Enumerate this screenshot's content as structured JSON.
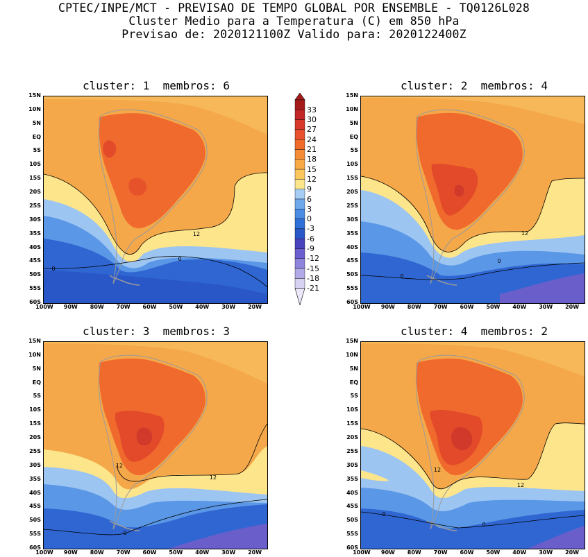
{
  "header": {
    "line1": "CPTEC/INPE/MCT - PREVISAO DE TEMPO GLOBAL POR ENSEMBLE - TQ0126L028",
    "line2": "Cluster Medio para a Temperatura (C) em 850 hPa",
    "line3": "Previsao de: 2020121100Z   Valido para: 2020122400Z"
  },
  "panels": [
    {
      "title": "cluster: 1  membros: 6",
      "contour_labels": [
        "12",
        "0",
        "0"
      ]
    },
    {
      "title": "cluster: 2  membros: 4",
      "contour_labels": [
        "12",
        "0",
        "0"
      ]
    },
    {
      "title": "cluster: 3  membros: 3",
      "contour_labels": [
        "12",
        "12",
        "0"
      ]
    },
    {
      "title": "cluster: 4  membros: 2",
      "contour_labels": [
        "12",
        "12",
        "0",
        "0"
      ]
    }
  ],
  "axes": {
    "lat_labels": [
      "15N",
      "10N",
      "5N",
      "EQ",
      "5S",
      "10S",
      "15S",
      "20S",
      "25S",
      "30S",
      "35S",
      "40S",
      "45S",
      "50S",
      "55S",
      "60S"
    ],
    "lon_labels": [
      "100W",
      "90W",
      "80W",
      "70W",
      "60W",
      "50W",
      "40W",
      "30W",
      "20W"
    ]
  },
  "colorbar": {
    "labels": [
      "33",
      "30",
      "27",
      "24",
      "21",
      "18",
      "15",
      "12",
      "9",
      "6",
      "3",
      "0",
      "-3",
      "-6",
      "-9",
      "-12",
      "-15",
      "-18",
      "-21"
    ],
    "colors": [
      "#a51b1b",
      "#c22626",
      "#d8382a",
      "#e9502e",
      "#f06a2a",
      "#f58c35",
      "#f8ab45",
      "#fbc75c",
      "#fde58c",
      "#a6cdf5",
      "#6eaaeb",
      "#4a8be3",
      "#2f6fd8",
      "#2a57c8",
      "#4a43be",
      "#6b5ecf",
      "#8e84dc",
      "#b2aae6",
      "#d8d2f2"
    ]
  },
  "colors": {
    "ocean_warm": "#f4a84a",
    "land_hot": "#ef6a2c",
    "land_hotter": "#e24a2a",
    "land_hottest": "#d13a2a",
    "pale_yellow": "#fde58c",
    "light_blue": "#9cc5f2",
    "mid_blue": "#5a97e6",
    "deep_blue": "#2f66d2",
    "purple": "#6a5ecb",
    "coast": "#9a9a9a",
    "contour": "#000000"
  }
}
